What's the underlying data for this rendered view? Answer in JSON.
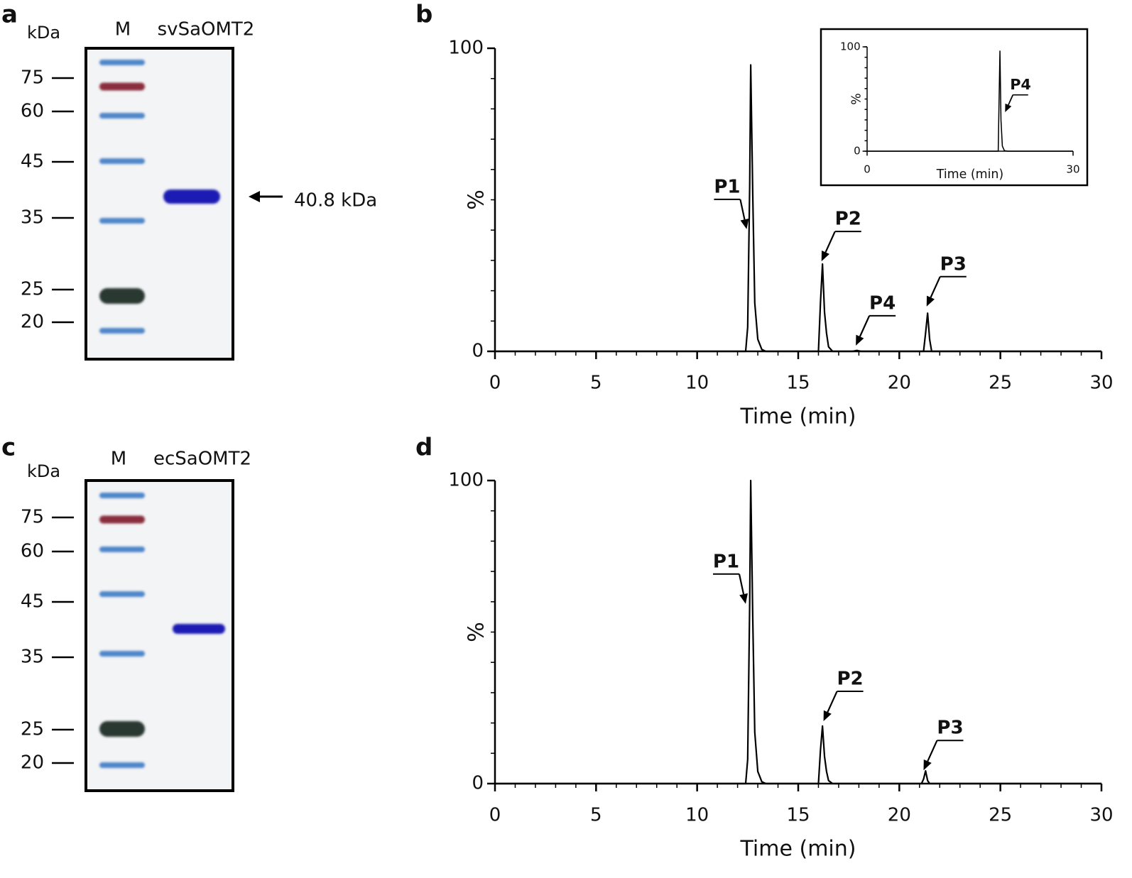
{
  "panels": [
    {
      "letter": "a",
      "unit": "kDa",
      "lanes": [
        "M",
        "svSaOMT2"
      ],
      "markers": [
        75,
        60,
        45,
        35,
        25,
        20
      ],
      "band_label": "40.8 kDa"
    },
    {
      "letter": "b"
    },
    {
      "letter": "c",
      "unit": "kDa",
      "lanes": [
        "M",
        "ecSaOMT2"
      ],
      "markers": [
        75,
        60,
        45,
        35,
        25,
        20
      ]
    },
    {
      "letter": "d"
    }
  ],
  "chart_data": [
    {
      "type": "line",
      "xlabel": "Time (min)",
      "ylabel": "%",
      "x": [
        0,
        12.4,
        12.5,
        12.6,
        12.65,
        12.75,
        12.85,
        13.0,
        13.2,
        13.4,
        16.0,
        16.1,
        16.2,
        16.3,
        16.4,
        16.5,
        16.7,
        17.7,
        17.9,
        18.1,
        21.2,
        21.3,
        21.4,
        21.5,
        21.6,
        30
      ],
      "series": [
        {
          "color": "#000000",
          "values": [
            0,
            0,
            8,
            55,
            94.5,
            52,
            16,
            4,
            0.6,
            0,
            0,
            16,
            28.8,
            13,
            6,
            1.5,
            0,
            0,
            0.3,
            0,
            0,
            6,
            12.6,
            4,
            0,
            0
          ]
        }
      ],
      "xlim": [
        0,
        30
      ],
      "ylim": [
        0,
        100
      ],
      "xticks": [
        0,
        5,
        10,
        15,
        20,
        25,
        30
      ],
      "yticks": [
        0,
        100
      ],
      "xminor": 1,
      "yminor": 10,
      "annotations": [
        {
          "text": "P1",
          "x": 12.45,
          "y": 40.3
        },
        {
          "text": "P2",
          "x": 16.15,
          "y": 29.7
        },
        {
          "text": "P4",
          "x": 17.85,
          "y": 1.9
        },
        {
          "text": "P3",
          "x": 21.35,
          "y": 14.8
        }
      ]
    },
    {
      "type": "line",
      "xlabel": "Time (min)",
      "ylabel": "%",
      "x": [
        0,
        19.1,
        19.2,
        19.35,
        19.5,
        19.7,
        20.0,
        20.5,
        30
      ],
      "series": [
        {
          "color": "#000000",
          "values": [
            0,
            0,
            40,
            96,
            30,
            5,
            0.5,
            0,
            0
          ]
        }
      ],
      "xlim": [
        0,
        30
      ],
      "ylim": [
        0,
        100
      ],
      "xticks": [
        0,
        30
      ],
      "yticks": [
        0,
        100
      ],
      "yminor": 10,
      "annotations": [
        {
          "text": "P4",
          "x": 20.1,
          "y": 37.4
        }
      ]
    },
    {
      "type": "line",
      "xlabel": "Time (min)",
      "ylabel": "%",
      "x": [
        0,
        12.4,
        12.5,
        12.6,
        12.65,
        12.75,
        12.85,
        13.0,
        13.2,
        13.4,
        16.0,
        16.1,
        16.2,
        16.3,
        16.4,
        16.5,
        16.7,
        21.1,
        21.2,
        21.3,
        21.4,
        21.5,
        30
      ],
      "series": [
        {
          "color": "#000000",
          "values": [
            0,
            0,
            8,
            60,
            100,
            55,
            17,
            4,
            0.6,
            0,
            0,
            11,
            19,
            9,
            4,
            1,
            0,
            0,
            1.5,
            4.2,
            1,
            0,
            0
          ]
        }
      ],
      "xlim": [
        0,
        30
      ],
      "ylim": [
        0,
        100
      ],
      "xticks": [
        0,
        5,
        10,
        15,
        20,
        25,
        30
      ],
      "yticks": [
        0,
        100
      ],
      "xminor": 1,
      "yminor": 10,
      "annotations": [
        {
          "text": "P1",
          "x": 12.4,
          "y": 59.3
        },
        {
          "text": "P2",
          "x": 16.25,
          "y": 20.6
        },
        {
          "text": "P3",
          "x": 21.2,
          "y": 4.4
        }
      ]
    }
  ]
}
